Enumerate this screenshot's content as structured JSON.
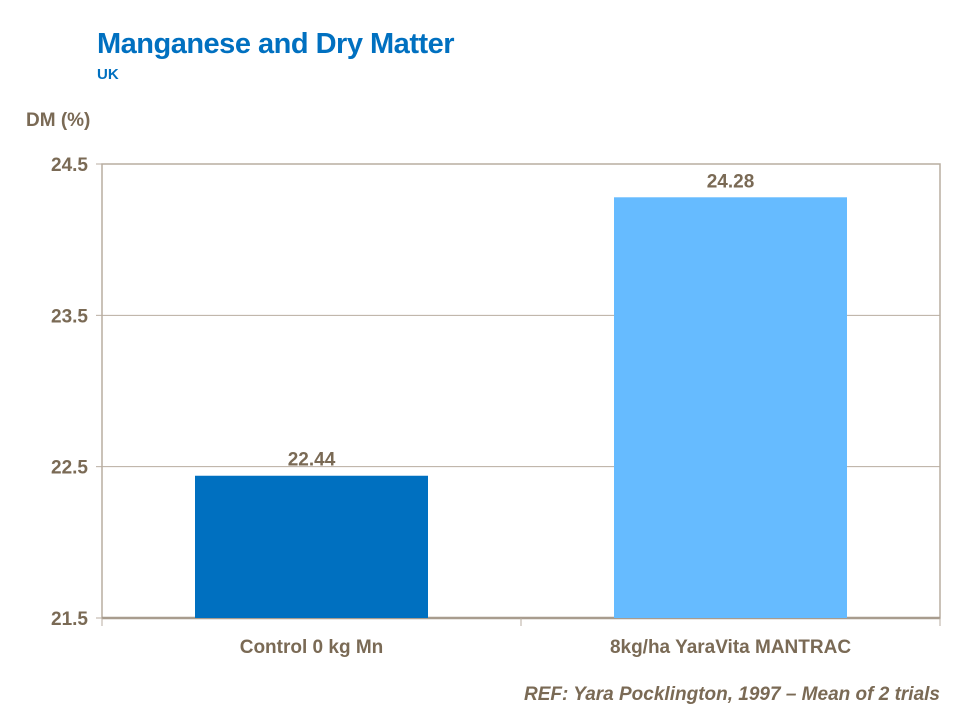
{
  "chart_data": {
    "type": "bar",
    "title": "Manganese and Dry Matter",
    "subtitle": "UK",
    "ylabel": "DM (%)",
    "xlabel": "",
    "categories": [
      "Control 0 kg Mn",
      "8kg/ha YaraVita MANTRAC"
    ],
    "values": [
      22.44,
      24.28
    ],
    "data_labels": [
      "22.44",
      "24.28"
    ],
    "colors": [
      "#0070c0",
      "#66bbff"
    ],
    "ylim": [
      21.5,
      24.5
    ],
    "yticks": [
      21.5,
      22.5,
      23.5,
      24.5
    ],
    "ytick_labels": [
      "21.5",
      "22.5",
      "23.5",
      "24.5"
    ],
    "grid": true,
    "note": "REF: Yara Pocklington, 1997 – Mean of 2 trials"
  }
}
